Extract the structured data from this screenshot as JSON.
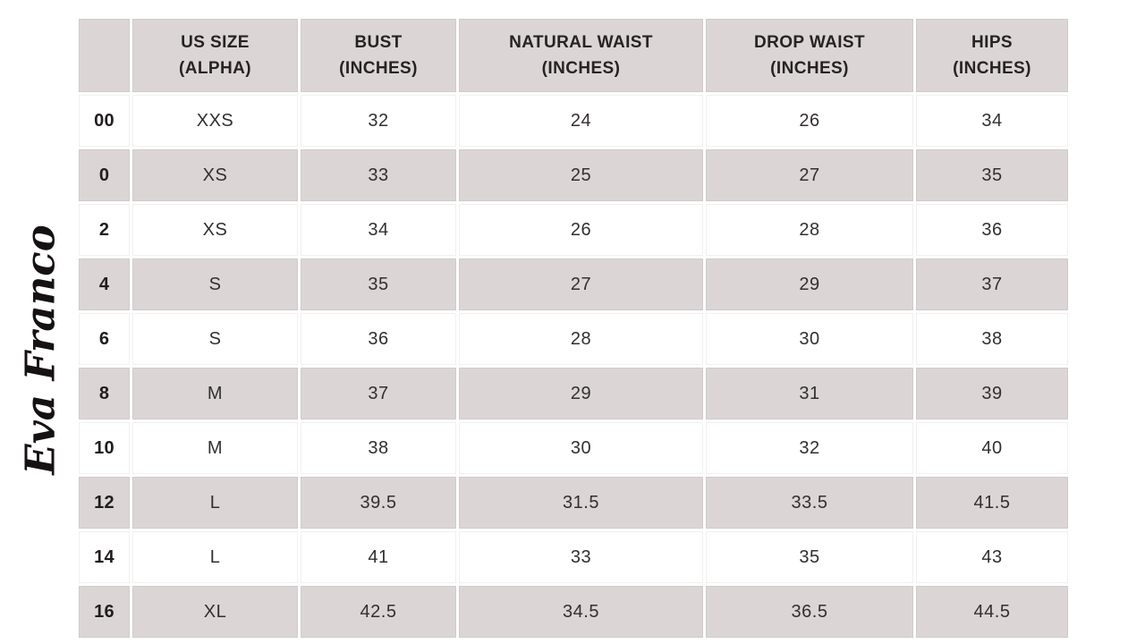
{
  "brand": {
    "logo_text": "Eva Franco"
  },
  "colors": {
    "cell_gray": "#dbd6d5",
    "text_dark": "#272324",
    "background": "#ffffff"
  },
  "table": {
    "headers": [
      "",
      "US SIZE\n(ALPHA)",
      "BUST\n(INCHES)",
      "NATURAL WAIST\n(INCHES)",
      "DROP WAIST\n(INCHES)",
      "HIPS\n(INCHES)"
    ],
    "rows": [
      [
        "00",
        "XXS",
        "32",
        "24",
        "26",
        "34"
      ],
      [
        "0",
        "XS",
        "33",
        "25",
        "27",
        "35"
      ],
      [
        "2",
        "XS",
        "34",
        "26",
        "28",
        "36"
      ],
      [
        "4",
        "S",
        "35",
        "27",
        "29",
        "37"
      ],
      [
        "6",
        "S",
        "36",
        "28",
        "30",
        "38"
      ],
      [
        "8",
        "M",
        "37",
        "29",
        "31",
        "39"
      ],
      [
        "10",
        "M",
        "38",
        "30",
        "32",
        "40"
      ],
      [
        "12",
        "L",
        "39.5",
        "31.5",
        "33.5",
        "41.5"
      ],
      [
        "14",
        "L",
        "41",
        "33",
        "35",
        "43"
      ],
      [
        "16",
        "XL",
        "42.5",
        "34.5",
        "36.5",
        "44.5"
      ]
    ]
  },
  "chart_data": {
    "type": "table",
    "columns": [
      "",
      "US SIZE (ALPHA)",
      "BUST (INCHES)",
      "NATURAL WAIST (INCHES)",
      "DROP WAIST (INCHES)",
      "HIPS (INCHES)"
    ],
    "rows": [
      [
        "00",
        "XXS",
        32,
        24,
        26,
        34
      ],
      [
        "0",
        "XS",
        33,
        25,
        27,
        35
      ],
      [
        "2",
        "XS",
        34,
        26,
        28,
        36
      ],
      [
        "4",
        "S",
        35,
        27,
        29,
        37
      ],
      [
        "6",
        "S",
        36,
        28,
        30,
        38
      ],
      [
        "8",
        "M",
        37,
        29,
        31,
        39
      ],
      [
        "10",
        "M",
        38,
        30,
        32,
        40
      ],
      [
        "12",
        "L",
        39.5,
        31.5,
        33.5,
        41.5
      ],
      [
        "14",
        "L",
        41,
        33,
        35,
        43
      ],
      [
        "16",
        "XL",
        42.5,
        34.5,
        36.5,
        44.5
      ]
    ],
    "layout_hints": {
      "striped_rows": true,
      "stripe_color": "#dbd6d5",
      "header_background": "#dbd6d5",
      "first_column_bold": true
    }
  }
}
